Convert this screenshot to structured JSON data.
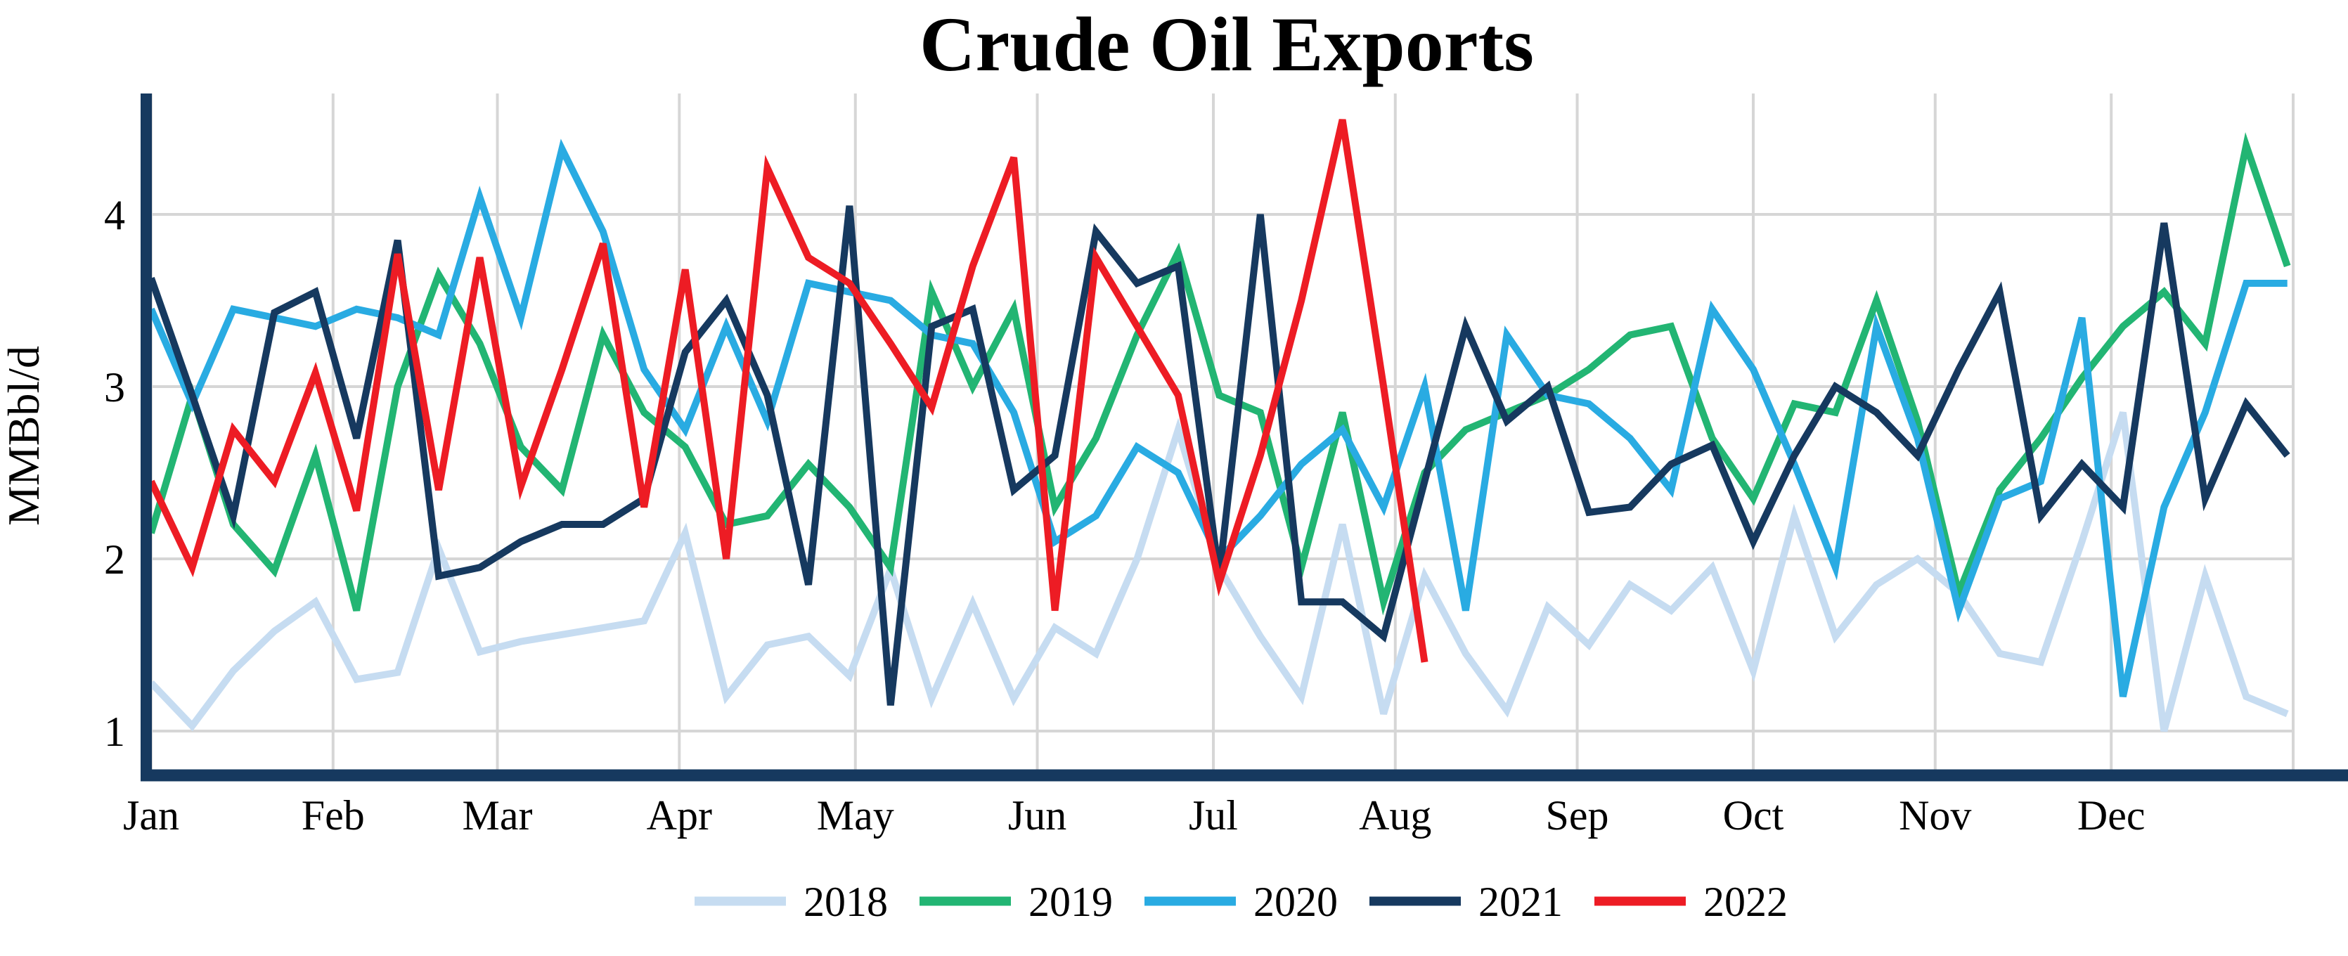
{
  "title": "Crude Oil Exports",
  "y_axis": {
    "label": "MMBbl/d",
    "ticks": [
      "1",
      "2",
      "3",
      "4"
    ]
  },
  "x_axis": {
    "months": [
      "Jan",
      "Feb",
      "Mar",
      "Apr",
      "May",
      "Jun",
      "Jul",
      "Aug",
      "Sep",
      "Oct",
      "Nov",
      "Dec"
    ]
  },
  "legend": {
    "items": [
      "2018",
      "2019",
      "2020",
      "2021",
      "2022"
    ]
  },
  "colors": {
    "s2018": "#c6dcf1",
    "s2019": "#22b573",
    "s2020": "#29abe2",
    "s2021": "#16395f",
    "s2022": "#ed1c24",
    "grid": "#d6d6d6",
    "axis": "#16395f"
  },
  "chart_data": {
    "type": "line",
    "title": "Crude Oil Exports",
    "ylabel": "MMBbl/d",
    "xlabel": "",
    "x_unit": "weekly points, Jan through Dec",
    "ylim": [
      0.7,
      4.7
    ],
    "yticks": [
      1,
      2,
      3,
      4
    ],
    "grid": true,
    "legend_position": "bottom-center",
    "month_day_offsets": [
      0,
      31,
      59,
      90,
      120,
      151,
      181,
      212,
      243,
      273,
      304,
      334,
      365
    ],
    "series": [
      {
        "name": "2018",
        "color": "#c6dcf1",
        "values": [
          1.28,
          1.03,
          1.35,
          1.58,
          1.75,
          1.3,
          1.34,
          2.06,
          1.46,
          1.52,
          1.56,
          1.6,
          1.64,
          2.15,
          1.2,
          1.5,
          1.55,
          1.32,
          1.94,
          1.19,
          1.74,
          1.19,
          1.6,
          1.45,
          2.0,
          2.75,
          1.95,
          1.55,
          1.2,
          2.2,
          1.1,
          1.9,
          1.45,
          1.12,
          1.72,
          1.5,
          1.85,
          1.7,
          1.95,
          1.35,
          2.25,
          1.55,
          1.85,
          2.0,
          1.8,
          1.45,
          1.4,
          2.1,
          2.85,
          1.0,
          1.9,
          1.2,
          1.1
        ]
      },
      {
        "name": "2019",
        "color": "#22b573",
        "values": [
          2.15,
          2.95,
          2.2,
          1.93,
          2.6,
          1.7,
          3.0,
          3.65,
          3.25,
          2.65,
          2.4,
          3.3,
          2.85,
          2.65,
          2.2,
          2.25,
          2.55,
          2.3,
          1.95,
          3.55,
          3.0,
          3.45,
          2.3,
          2.7,
          3.3,
          3.78,
          2.95,
          2.85,
          1.95,
          2.85,
          1.75,
          2.5,
          2.75,
          2.85,
          2.95,
          3.1,
          3.3,
          3.35,
          2.7,
          2.35,
          2.9,
          2.85,
          3.5,
          2.8,
          1.8,
          2.4,
          2.7,
          3.05,
          3.35,
          3.55,
          3.25,
          4.4,
          3.7
        ]
      },
      {
        "name": "2020",
        "color": "#29abe2",
        "values": [
          3.45,
          2.9,
          3.45,
          3.4,
          3.35,
          3.45,
          3.4,
          3.3,
          4.1,
          3.4,
          4.38,
          3.9,
          3.1,
          2.75,
          3.35,
          2.8,
          3.6,
          3.55,
          3.5,
          3.3,
          3.25,
          2.85,
          2.1,
          2.25,
          2.65,
          2.5,
          2.0,
          2.25,
          2.55,
          2.75,
          2.3,
          3.0,
          1.7,
          3.3,
          2.95,
          2.9,
          2.7,
          2.4,
          3.45,
          3.1,
          2.55,
          1.95,
          3.35,
          2.7,
          1.7,
          2.35,
          2.45,
          3.4,
          1.2,
          2.3,
          2.85,
          3.6,
          3.6
        ]
      },
      {
        "name": "2021",
        "color": "#16395f",
        "values": [
          3.63,
          2.95,
          2.25,
          3.43,
          3.55,
          2.7,
          3.85,
          1.9,
          1.95,
          2.1,
          2.2,
          2.2,
          2.35,
          3.2,
          3.5,
          2.95,
          1.85,
          4.05,
          1.15,
          3.35,
          3.45,
          2.4,
          2.6,
          3.9,
          3.6,
          3.7,
          1.9,
          4.0,
          1.75,
          1.75,
          1.55,
          2.45,
          3.35,
          2.8,
          3.0,
          2.27,
          2.3,
          2.55,
          2.66,
          2.1,
          2.6,
          3.0,
          2.85,
          2.6,
          3.1,
          3.55,
          2.25,
          2.55,
          2.3,
          3.95,
          2.35,
          2.9,
          2.6
        ]
      },
      {
        "name": "2022",
        "color": "#ed1c24",
        "values": [
          2.45,
          1.95,
          2.75,
          2.45,
          3.08,
          2.28,
          3.77,
          2.4,
          3.75,
          2.42,
          3.1,
          3.83,
          2.3,
          3.68,
          2.0,
          4.27,
          3.75,
          3.6,
          3.25,
          2.88,
          3.7,
          4.33,
          1.7,
          3.75,
          3.35,
          2.95,
          1.86,
          2.6,
          3.5,
          4.55,
          3.0,
          1.4
        ]
      }
    ]
  },
  "layout_note": "weekly line chart; 53 points for 2018-2021, 32 points for 2022 ending just after Aug"
}
